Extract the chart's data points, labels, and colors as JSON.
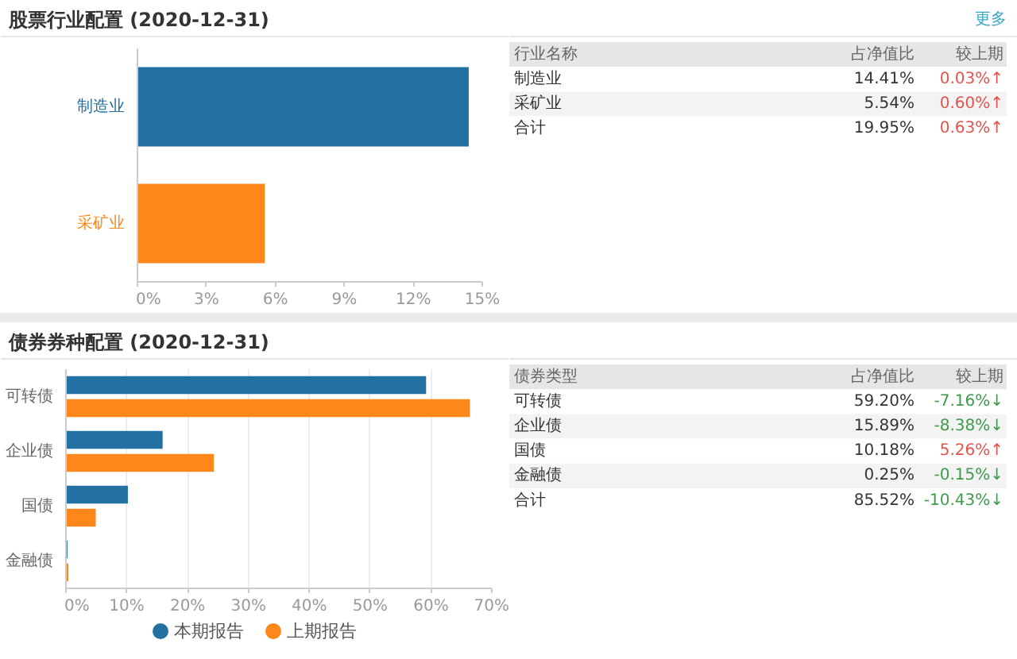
{
  "chart_data": [
    {
      "type": "bar",
      "title": "股票行业配置 (2020-12-31)",
      "orientation": "horizontal",
      "categories": [
        "制造业",
        "采矿业"
      ],
      "values": [
        14.41,
        5.54
      ],
      "colors": [
        "#2371a2",
        "#fd871a"
      ],
      "xlim": [
        0,
        15
      ],
      "xticks": [
        {
          "value": 0,
          "label": "0%"
        },
        {
          "value": 3,
          "label": "3%"
        },
        {
          "value": 6,
          "label": "6%"
        },
        {
          "value": 9,
          "label": "9%"
        },
        {
          "value": 12,
          "label": "12%"
        },
        {
          "value": 15,
          "label": "15%"
        }
      ]
    },
    {
      "type": "other",
      "ylabel": "行业名称",
      "categories": [
        "制造业",
        "采矿业",
        "合计"
      ],
      "series": [
        {
          "name": "占净值比",
          "colors": [
            "#ffffff",
            "#f3f3f3",
            "#ffffff"
          ],
          "values": [
            14.41,
            5.54,
            19.95
          ],
          "value_labels": [
            "14.41%",
            "5.54%",
            "19.95%"
          ]
        },
        {
          "name": "较上期",
          "colors": [
            "#e4534b",
            "#e4534b",
            "#e4534b"
          ],
          "values": [
            0.03,
            0.6,
            0.63
          ],
          "value_labels": [
            "0.03%↑",
            "0.60%↑",
            "0.63%↑"
          ]
        }
      ],
      "annotations": [
        "更多"
      ]
    },
    {
      "type": "bar",
      "title": "债券券种配置 (2020-12-31)",
      "orientation": "horizontal",
      "categories": [
        "可转债",
        "企业债",
        "国债",
        "金融债"
      ],
      "series": [
        {
          "name": "本期报告",
          "color": "#2371a2",
          "values": [
            59.2,
            15.89,
            10.18,
            0.25
          ]
        },
        {
          "name": "上期报告",
          "color": "#fd871a",
          "values": [
            66.4,
            24.3,
            4.9,
            0.4
          ]
        }
      ],
      "xlim": [
        0,
        70
      ],
      "xticks": [
        {
          "value": 0,
          "label": "0%"
        },
        {
          "value": 10,
          "label": "10%"
        },
        {
          "value": 20,
          "label": "20%"
        },
        {
          "value": 30,
          "label": "30%"
        },
        {
          "value": 40,
          "label": "40%"
        },
        {
          "value": 50,
          "label": "50%"
        },
        {
          "value": 60,
          "label": "60%"
        },
        {
          "value": 70,
          "label": "70%"
        }
      ],
      "grid": "x",
      "legend": "bottom"
    },
    {
      "type": "other",
      "ylabel": "债券类型",
      "categories": [
        "可转债",
        "企业债",
        "国债",
        "金融债",
        "合计"
      ],
      "series": [
        {
          "name": "占净值比",
          "colors": [
            "#ffffff",
            "#f3f3f3",
            "#ffffff",
            "#f3f3f3",
            "#ffffff"
          ],
          "values": [
            59.2,
            15.89,
            10.18,
            0.25,
            85.52
          ],
          "value_labels": [
            "59.20%",
            "15.89%",
            "10.18%",
            "0.25%",
            "85.52%"
          ]
        },
        {
          "name": "较上期",
          "colors": [
            "#3f9a4c",
            "#3f9a4c",
            "#e4534b",
            "#3f9a4c",
            "#3f9a4c"
          ],
          "values": [
            -7.16,
            -8.38,
            5.26,
            -0.15,
            -10.43
          ],
          "value_labels": [
            "-7.16%↓",
            "-8.38%↓",
            "5.26%↑",
            "-0.15%↓",
            "-10.43%↓"
          ]
        }
      ]
    }
  ]
}
